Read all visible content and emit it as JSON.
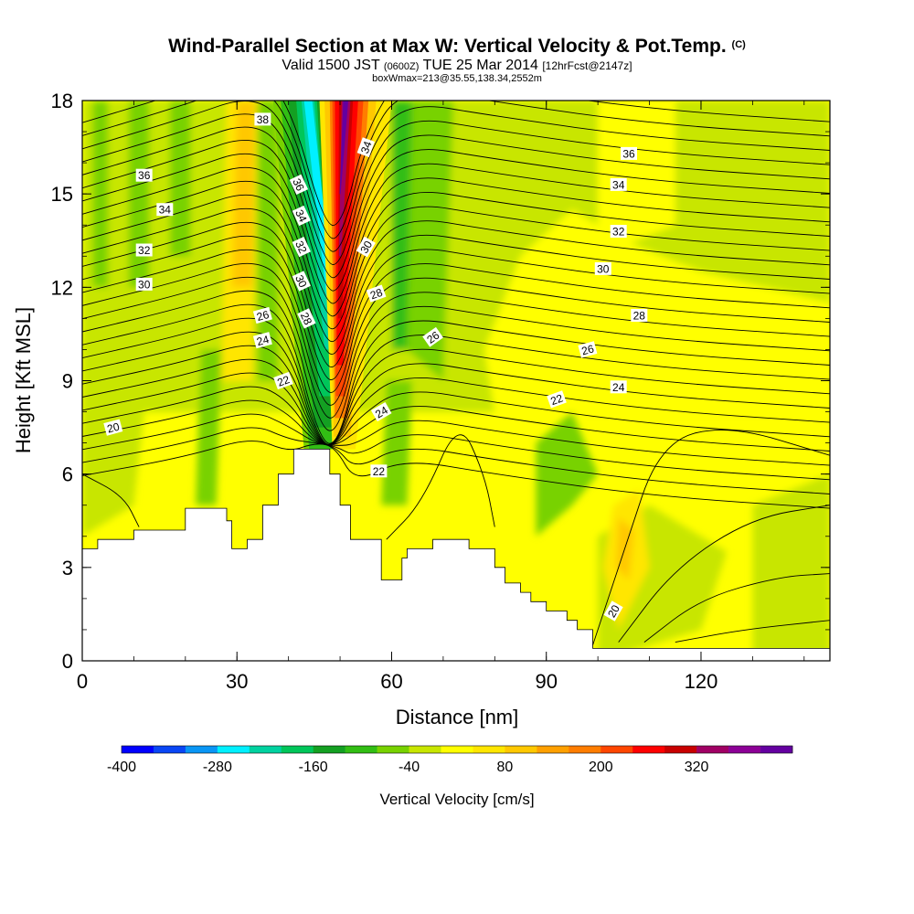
{
  "chart_data": {
    "type": "heatmap",
    "title": "Wind-Parallel Section at Max W: Vertical Velocity & Pot.Temp.",
    "title_mark": "(C)",
    "subtitle_parts": [
      "Valid 1500 JST ",
      "(0600Z)",
      " TUE 25 Mar 2014 ",
      "[12hrFcst@2147z]"
    ],
    "info_line": "boxWmax=213@35.55,138.34,2552m",
    "xlabel": "Distance [nm]",
    "ylabel": "Height [Kft MSL]",
    "xlim": [
      0,
      145
    ],
    "ylim": [
      0,
      18
    ],
    "x_ticks": [
      0,
      30,
      60,
      90,
      120
    ],
    "y_ticks": [
      0,
      3,
      6,
      9,
      12,
      15,
      18
    ],
    "colorbar": {
      "title": "Vertical Velocity [cm/s]",
      "tick_labels": [
        "-400",
        "-280",
        "-160",
        "-40",
        "80",
        "200",
        "320"
      ],
      "colors": [
        "#0000ff",
        "#0a46f5",
        "#0a96f5",
        "#00f0ff",
        "#00d2a0",
        "#00c65a",
        "#14a022",
        "#32be14",
        "#78d200",
        "#c8e600",
        "#ffff00",
        "#ffe600",
        "#ffc800",
        "#ffa000",
        "#ff7d00",
        "#ff4600",
        "#ff0000",
        "#c80000",
        "#a00064",
        "#8c0096",
        "#6400a0"
      ]
    },
    "terrain_profile": {
      "x": [
        0,
        3,
        3,
        5,
        5,
        10,
        10,
        20,
        20,
        25,
        25,
        28,
        28,
        29,
        29,
        32,
        32,
        35,
        35,
        38,
        38,
        41,
        41,
        48,
        48,
        50,
        50,
        52,
        52,
        54,
        54,
        58,
        58,
        61,
        61,
        62,
        62,
        63,
        63,
        65,
        65,
        68,
        68,
        71,
        71,
        75,
        75,
        80,
        80,
        82,
        82,
        85,
        85,
        87,
        87,
        90,
        90,
        94,
        94,
        96,
        96,
        99,
        99,
        103,
        103,
        145
      ],
      "y": [
        3.6,
        3.6,
        3.9,
        3.9,
        3.9,
        3.9,
        4.2,
        4.2,
        4.9,
        4.9,
        4.9,
        4.9,
        4.5,
        4.5,
        3.6,
        3.6,
        3.9,
        3.9,
        5.0,
        5.0,
        6.0,
        6.0,
        6.8,
        6.8,
        6.0,
        6.0,
        5.0,
        5.0,
        3.9,
        3.9,
        3.9,
        3.9,
        2.6,
        2.6,
        2.6,
        2.6,
        3.3,
        3.3,
        3.6,
        3.6,
        3.6,
        3.6,
        3.9,
        3.9,
        3.9,
        3.9,
        3.6,
        3.6,
        3.0,
        3.0,
        2.5,
        2.5,
        2.2,
        2.2,
        1.9,
        1.9,
        1.6,
        1.6,
        1.3,
        1.3,
        1.0,
        1.0,
        0.4,
        0.4,
        0.4,
        0.4
      ]
    },
    "velocity_features": [
      {
        "kind": "updraft-core",
        "x": [
          48,
          56
        ],
        "y": [
          6.8,
          18
        ],
        "peak": 360
      },
      {
        "kind": "downdraft",
        "x": [
          38,
          50
        ],
        "y": [
          6.8,
          18
        ],
        "min": -280
      },
      {
        "kind": "downdraft-band",
        "x": [
          60,
          70
        ],
        "y": [
          9,
          18
        ],
        "min": -120
      }
    ],
    "potential_temperature_labels": [
      {
        "value": "38",
        "x": 35,
        "y": 17.4,
        "rot": 0
      },
      {
        "value": "36",
        "x": 12,
        "y": 15.6,
        "rot": 0
      },
      {
        "value": "34",
        "x": 16,
        "y": 14.5,
        "rot": 0
      },
      {
        "value": "32",
        "x": 12,
        "y": 13.2,
        "rot": 0
      },
      {
        "value": "30",
        "x": 12,
        "y": 12.1,
        "rot": 0
      },
      {
        "value": "26",
        "x": 35,
        "y": 11.1,
        "rot": -15
      },
      {
        "value": "24",
        "x": 35,
        "y": 10.3,
        "rot": -15
      },
      {
        "value": "22",
        "x": 39,
        "y": 9.0,
        "rot": -20
      },
      {
        "value": "20",
        "x": 6,
        "y": 7.5,
        "rot": -15
      },
      {
        "value": "36",
        "x": 42,
        "y": 15.3,
        "rot": 65
      },
      {
        "value": "34",
        "x": 42.5,
        "y": 14.3,
        "rot": 65
      },
      {
        "value": "32",
        "x": 42.5,
        "y": 13.3,
        "rot": 65
      },
      {
        "value": "30",
        "x": 42.5,
        "y": 12.2,
        "rot": 65
      },
      {
        "value": "28",
        "x": 43.5,
        "y": 11.0,
        "rot": 65
      },
      {
        "value": "34",
        "x": 55,
        "y": 16.5,
        "rot": -70
      },
      {
        "value": "30",
        "x": 55,
        "y": 13.3,
        "rot": -60
      },
      {
        "value": "28",
        "x": 57,
        "y": 11.8,
        "rot": -20
      },
      {
        "value": "26",
        "x": 68,
        "y": 10.4,
        "rot": -35
      },
      {
        "value": "24",
        "x": 58,
        "y": 8.0,
        "rot": -30
      },
      {
        "value": "22",
        "x": 57.5,
        "y": 6.1,
        "rot": 0
      },
      {
        "value": "36",
        "x": 106,
        "y": 16.3,
        "rot": 0
      },
      {
        "value": "34",
        "x": 104,
        "y": 15.3,
        "rot": 0
      },
      {
        "value": "32",
        "x": 104,
        "y": 13.8,
        "rot": 0
      },
      {
        "value": "30",
        "x": 101,
        "y": 12.6,
        "rot": 0
      },
      {
        "value": "28",
        "x": 108,
        "y": 11.1,
        "rot": 0
      },
      {
        "value": "26",
        "x": 98,
        "y": 10.0,
        "rot": -15
      },
      {
        "value": "24",
        "x": 104,
        "y": 8.8,
        "rot": 0
      },
      {
        "value": "22",
        "x": 92,
        "y": 8.4,
        "rot": -20
      },
      {
        "value": "20",
        "x": 103,
        "y": 1.6,
        "rot": -60
      }
    ]
  }
}
